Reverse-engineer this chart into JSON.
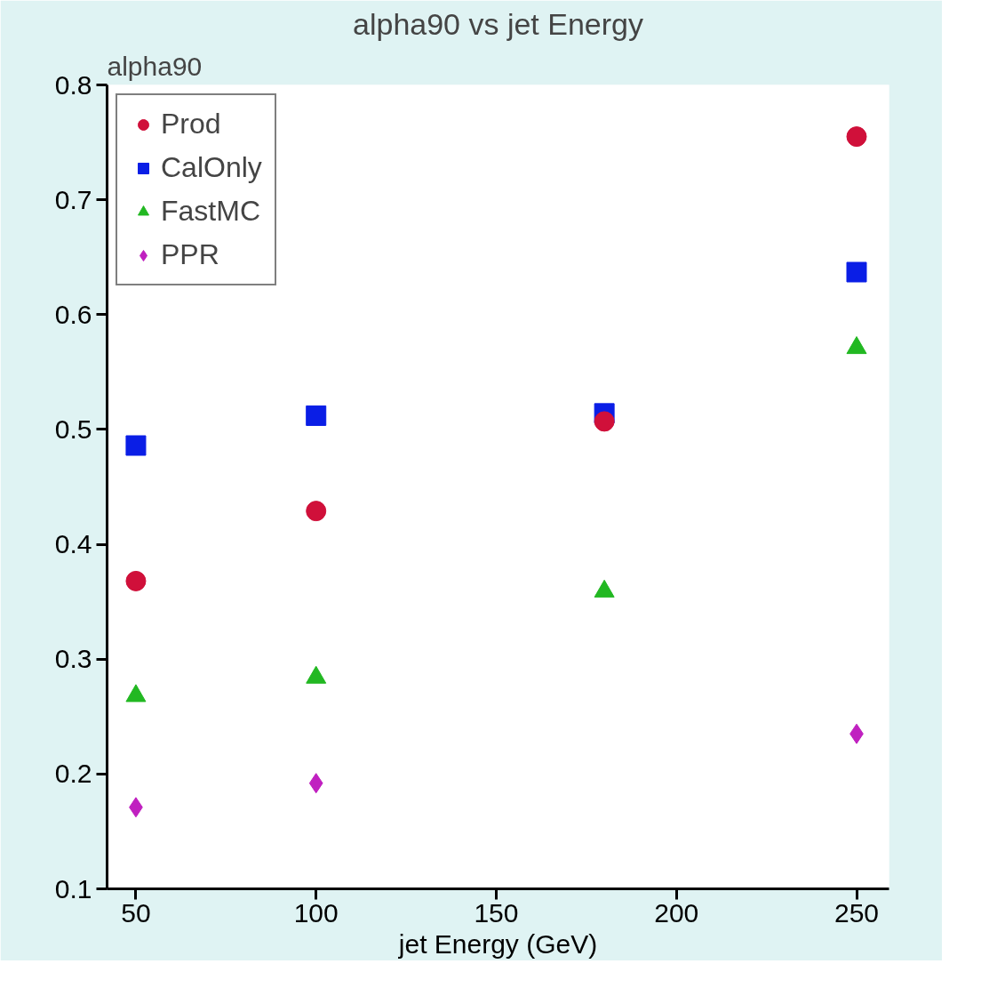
{
  "chart_data": {
    "type": "scatter",
    "title": "alpha90 vs jet Energy",
    "xlabel": "jet Energy (GeV)",
    "ylabel": "alpha90",
    "x": [
      50,
      100,
      180,
      250
    ],
    "series": [
      {
        "name": "Prod",
        "color": "#d0103a",
        "marker": "circle",
        "values": [
          0.368,
          0.429,
          0.507,
          0.755
        ]
      },
      {
        "name": "CalOnly",
        "color": "#0a1ee6",
        "marker": "square",
        "values": [
          0.486,
          0.512,
          0.514,
          0.637
        ]
      },
      {
        "name": "FastMC",
        "color": "#22b822",
        "marker": "triangle",
        "values": [
          0.268,
          0.284,
          0.359,
          0.571
        ]
      },
      {
        "name": "PPR",
        "color": "#c020c0",
        "marker": "diamond",
        "values": [
          0.171,
          0.192,
          null,
          0.235
        ]
      }
    ],
    "xlim": [
      42,
      259
    ],
    "xticks": [
      50,
      100,
      150,
      200,
      250
    ],
    "ylim": [
      0.1,
      0.8
    ],
    "yticks": [
      0.1,
      0.2,
      0.3,
      0.4,
      0.5,
      0.6,
      0.7,
      0.8
    ],
    "grid": false,
    "legend": "top left"
  }
}
